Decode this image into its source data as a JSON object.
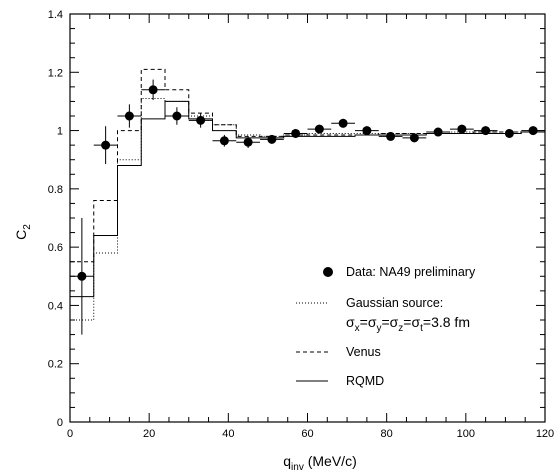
{
  "chart_data": {
    "type": "scatter",
    "title": "",
    "xlabel": "q",
    "xlabel_sub": "inv",
    "xlabel_unit": " (MeV/c)",
    "ylabel": "C",
    "ylabel_sub": "2",
    "xlim": [
      0,
      120
    ],
    "ylim": [
      0,
      1.4
    ],
    "xticks": [
      0,
      20,
      40,
      60,
      80,
      100,
      120
    ],
    "xtick_labels": [
      "0",
      "20",
      "40",
      "60",
      "80",
      "100",
      "120"
    ],
    "yticks": [
      0,
      0.2,
      0.4,
      0.6,
      0.8,
      1,
      1.2,
      1.4
    ],
    "ytick_labels": [
      "0",
      "0.2",
      "0.4",
      "0.6",
      "0.8",
      "1",
      "1.2",
      "1.4"
    ],
    "grid": false,
    "legend_position": "bottom-right",
    "data_points": {
      "name": "Data: NA49 preliminary",
      "marker": "filled-circle",
      "x": [
        3,
        9,
        15,
        21,
        27,
        33,
        39,
        45,
        51,
        57,
        63,
        69,
        75,
        81,
        87,
        93,
        99,
        105,
        111,
        117
      ],
      "y": [
        0.5,
        0.95,
        1.05,
        1.14,
        1.05,
        1.035,
        0.965,
        0.96,
        0.97,
        0.99,
        1.005,
        1.025,
        1.0,
        0.98,
        0.975,
        0.995,
        1.005,
        1.0,
        0.99,
        1.0
      ],
      "yerr": [
        0.2,
        0.065,
        0.04,
        0.035,
        0.03,
        0.025,
        0.02,
        0.02,
        0.015,
        0.015,
        0.015,
        0.015,
        0.015,
        0.015,
        0.015,
        0.015,
        0.015,
        0.015,
        0.015,
        0.015
      ],
      "xerr": 3
    },
    "histograms": [
      {
        "name": "Gaussian source:",
        "name_line2": "σx=σy=σz=σt=3.8 fm",
        "style": "dotted",
        "bin_edges": [
          0,
          6,
          12,
          18,
          24,
          30,
          36,
          42,
          48,
          54,
          60,
          66,
          72,
          78,
          84,
          90,
          96,
          102,
          108,
          114,
          120
        ],
        "values": [
          0.35,
          0.58,
          0.9,
          1.11,
          1.1,
          1.05,
          1.02,
          0.985,
          0.98,
          0.985,
          0.99,
          0.99,
          0.99,
          0.99,
          0.99,
          0.99,
          0.995,
          0.995,
          0.995,
          0.995
        ]
      },
      {
        "name": "Venus",
        "style": "dashed",
        "bin_edges": [
          0,
          6,
          12,
          18,
          24,
          30,
          36,
          42,
          48,
          54,
          60,
          66,
          72,
          78,
          84,
          90,
          96,
          102,
          108,
          114,
          120
        ],
        "values": [
          0.55,
          0.76,
          1.0,
          1.21,
          1.14,
          1.06,
          1.02,
          0.98,
          0.98,
          0.985,
          0.985,
          0.985,
          0.985,
          0.99,
          0.99,
          0.99,
          0.99,
          0.995,
          0.995,
          0.995
        ]
      },
      {
        "name": "RQMD",
        "style": "solid",
        "bin_edges": [
          0,
          6,
          12,
          18,
          24,
          30,
          36,
          42,
          48,
          54,
          60,
          66,
          72,
          78,
          84,
          90,
          96,
          102,
          108,
          114,
          120
        ],
        "values": [
          0.43,
          0.64,
          0.88,
          1.04,
          1.1,
          1.04,
          1.0,
          0.975,
          0.975,
          0.98,
          0.98,
          0.98,
          0.985,
          0.985,
          0.985,
          0.99,
          0.99,
          0.99,
          0.99,
          0.995
        ]
      }
    ]
  }
}
